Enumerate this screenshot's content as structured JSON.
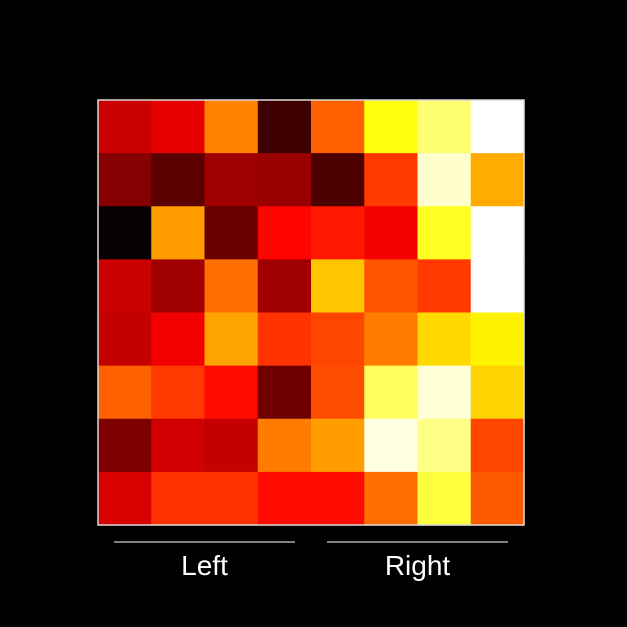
{
  "chart_data": {
    "type": "heatmap",
    "title": "",
    "xlabel": "",
    "ylabel": "",
    "colormap": "hot",
    "background": "#000000",
    "frame_color": "#d9d9d9",
    "value_range": [
      0,
      1
    ],
    "rows": 8,
    "cols": 8,
    "values": [
      [
        0.29,
        0.33,
        0.56,
        0.09,
        0.51,
        0.76,
        0.86,
        1.0
      ],
      [
        0.19,
        0.13,
        0.23,
        0.22,
        0.11,
        0.45,
        0.95,
        0.62
      ],
      [
        0.01,
        0.6,
        0.15,
        0.37,
        0.4,
        0.35,
        0.78,
        1.0
      ],
      [
        0.29,
        0.23,
        0.53,
        0.23,
        0.66,
        0.49,
        0.45,
        1.0
      ],
      [
        0.28,
        0.35,
        0.61,
        0.44,
        0.47,
        0.55,
        0.69,
        0.73
      ],
      [
        0.51,
        0.45,
        0.38,
        0.16,
        0.48,
        0.84,
        0.96,
        0.68
      ],
      [
        0.18,
        0.3,
        0.28,
        0.55,
        0.6,
        0.97,
        0.88,
        0.47
      ],
      [
        0.31,
        0.44,
        0.44,
        0.38,
        0.38,
        0.53,
        0.81,
        0.5
      ]
    ],
    "group_labels": [
      {
        "text": "Left",
        "cols": [
          0,
          3
        ],
        "line_color": "#cccccc"
      },
      {
        "text": "Right",
        "cols": [
          4,
          7
        ],
        "line_color": "#cccccc"
      }
    ]
  }
}
